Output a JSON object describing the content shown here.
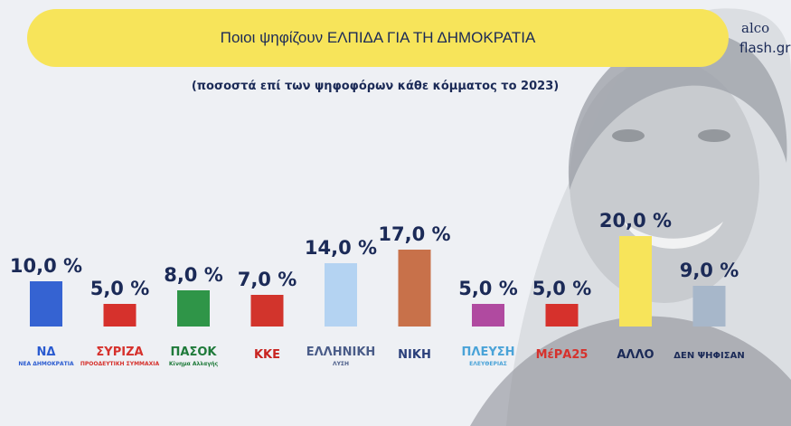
{
  "header": {
    "title": "Ποιοι ψηφίζουν ΕΛΠΙΔΑ ΓΙΑ ΤΗ ΔΗΜΟΚΡΑΤΙΑ",
    "subtitle": "(ποσοστά επί των ψηφοφόρων κάθε κόμματος το 2023)",
    "brand_line1": "alco",
    "brand_line2": "flash.gr"
  },
  "chart_data": {
    "type": "bar",
    "title": "Ποιοι ψηφίζουν ΕΛΠΙΔΑ ΓΙΑ ΤΗ ΔΗΜΟΚΡΑΤΙΑ",
    "subtitle": "(ποσοστά επί των ψηφοφόρων κάθε κόμματος το 2023)",
    "categories": [
      "ΝΔ",
      "ΣΥΡΙΖΑ",
      "ΠΑΣΟΚ",
      "ΚΚΕ",
      "ΕΛΛΗΝΙΚΗ ΛΥΣΗ",
      "ΝΙΚΗ",
      "ΠΛΕΥΣΗ ΕΛΕΥΘΕΡΙΑΣ",
      "ΜέΡΑ25",
      "ΑΛΛΟ",
      "ΔΕΝ ΨΗΦΙΣΑΝ"
    ],
    "values": [
      10.0,
      5.0,
      8.0,
      7.0,
      14.0,
      17.0,
      5.0,
      5.0,
      20.0,
      9.0
    ],
    "value_labels": [
      "10,0 %",
      "5,0 %",
      "8,0 %",
      "7,0 %",
      "14,0 %",
      "17,0 %",
      "5,0 %",
      "5,0 %",
      "20,0 %",
      "9,0 %"
    ],
    "tick_labels": [
      {
        "main": "ΝΔ",
        "sub": "ΝΕΑ ΔΗΜΟΚΡΑΤΙΑ"
      },
      {
        "main": "ΣΥΡΙΖΑ",
        "sub": "ΠΡΟΟΔΕΥΤΙΚΗ ΣΥΜΜΑΧΙΑ"
      },
      {
        "main": "ΠΑΣΟΚ",
        "sub": "Κίνημα Αλλαγής"
      },
      {
        "main": "ΚΚΕ",
        "sub": ""
      },
      {
        "main": "ΕΛΛΗΝΙΚΗ",
        "sub": "ΛΥΣΗ"
      },
      {
        "main": "ΝΙΚΗ",
        "sub": ""
      },
      {
        "main": "ΠΛΕΥΣΗ",
        "sub": "ΕΛΕΥΘΕΡΙΑΣ"
      },
      {
        "main": "ΜέΡΑ25",
        "sub": ""
      },
      {
        "main": "ΑΛΛΟ",
        "sub": ""
      },
      {
        "main": "ΔΕΝ ΨΗΦΙΣΑΝ",
        "sub": ""
      }
    ],
    "colors": [
      "#3563d2",
      "#d6312c",
      "#2f9548",
      "#d2342c",
      "#b4d3f2",
      "#c8714a",
      "#b04aa0",
      "#d6312c",
      "#f7e45a",
      "#a7b7ca"
    ],
    "label_colors": [
      "#2a5bd0",
      "#d6312c",
      "#1f7a3a",
      "#c8231f",
      "#4a5c88",
      "#2a3f7a",
      "#4aa3d8",
      "#d6312c",
      "#1b2a57",
      "#1b2a57"
    ],
    "ylim": [
      0,
      20
    ],
    "grid": false,
    "legend": "none"
  }
}
